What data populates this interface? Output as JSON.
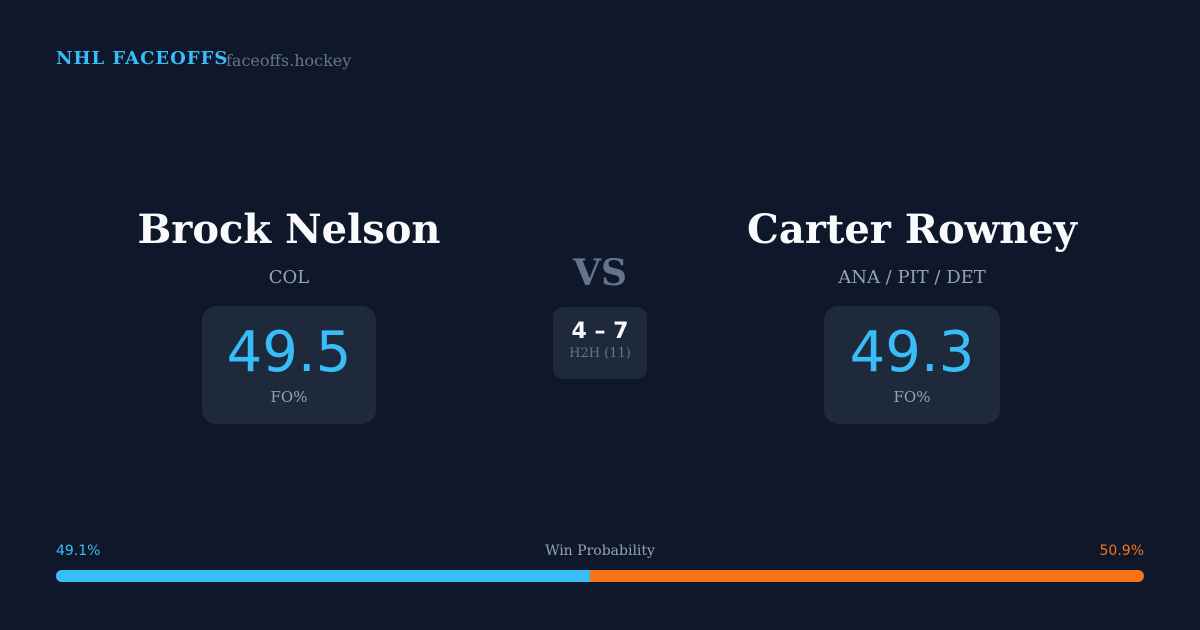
{
  "header": {
    "brand": "NHL FACEOFFS",
    "site": "faceoffs.hockey"
  },
  "left": {
    "name": "Brock Nelson",
    "team": "COL",
    "fo_pct": "49.5",
    "fo_label": "FO%"
  },
  "right": {
    "name": "Carter Rowney",
    "team": "ANA / PIT / DET",
    "fo_pct": "49.3",
    "fo_label": "FO%"
  },
  "center": {
    "vs": "VS",
    "score": "4 – 7",
    "h2h": "H2H (11)"
  },
  "win_probability": {
    "label": "Win Probability",
    "left": "49.1%",
    "right": "50.9%",
    "left_value": 49.1,
    "left_color": "#38bdf8",
    "right_color": "#f97316"
  }
}
